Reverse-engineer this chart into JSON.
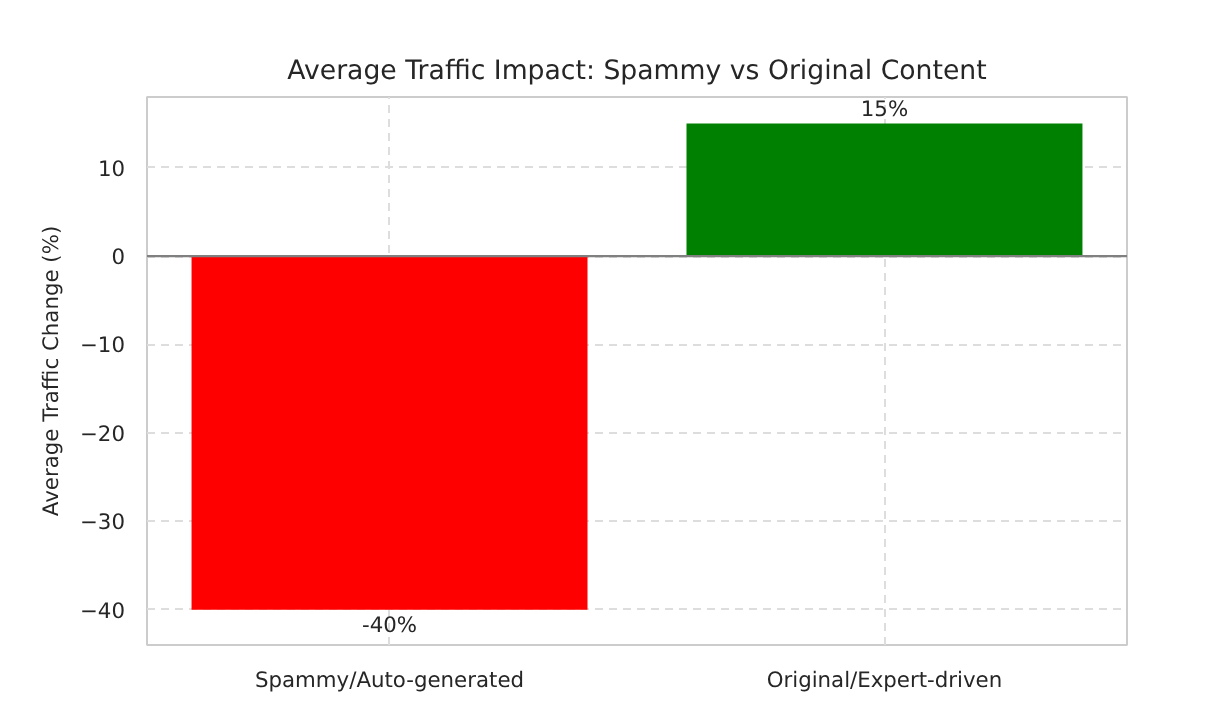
{
  "chart_data": {
    "type": "bar",
    "title": "Average Traffic Impact: Spammy vs Original Content",
    "ylabel": "Average Traffic Change (%)",
    "categories": [
      "Spammy/Auto-generated",
      "Original/Expert-driven"
    ],
    "values": [
      -40,
      15
    ],
    "colors": [
      "#ff0000",
      "#008000"
    ],
    "value_labels": [
      "-40%",
      "15%"
    ],
    "ylim": [
      -44,
      18
    ],
    "yticks": [
      -40,
      -30,
      -20,
      -10,
      0,
      10
    ],
    "grid": true,
    "ref_lines": [
      {
        "axis": "y",
        "value": 0,
        "color": "#808080"
      }
    ]
  }
}
